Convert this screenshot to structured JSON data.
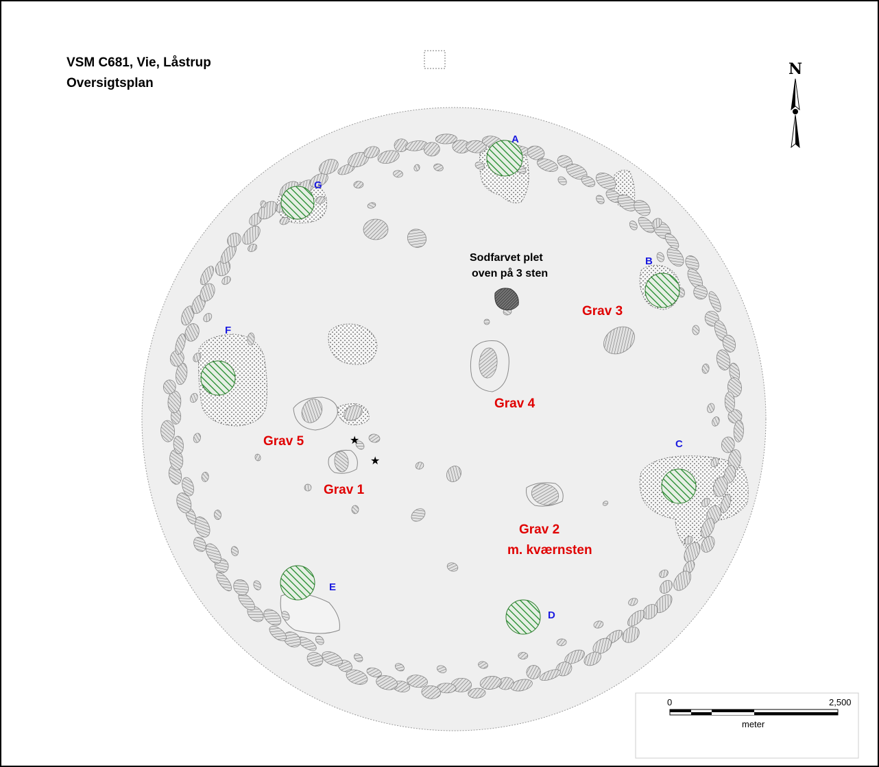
{
  "title": {
    "line1": "VSM C681, Vie, Låstrup",
    "line2": "Oversigtsplan"
  },
  "north": {
    "label": "N"
  },
  "features": [
    {
      "id": "A",
      "label": "A"
    },
    {
      "id": "B",
      "label": "B"
    },
    {
      "id": "C",
      "label": "C"
    },
    {
      "id": "D",
      "label": "D"
    },
    {
      "id": "E",
      "label": "E"
    },
    {
      "id": "F",
      "label": "F"
    },
    {
      "id": "G",
      "label": "G"
    }
  ],
  "graves": [
    {
      "id": "grav1",
      "label": "Grav 1"
    },
    {
      "id": "grav2",
      "label": "Grav 2",
      "sub": "m. kværnsten"
    },
    {
      "id": "grav3",
      "label": "Grav 3"
    },
    {
      "id": "grav4",
      "label": "Grav 4"
    },
    {
      "id": "grav5",
      "label": "Grav 5"
    }
  ],
  "soot_note": {
    "line1": "Sodfarvet plet",
    "line2": "oven på 3 sten"
  },
  "scale": {
    "start": "0",
    "end": "2,500",
    "unit": "meter"
  },
  "colors": {
    "grav": "#e00000",
    "letter": "#1a1ae0",
    "hatch_green": "#1f8a2a",
    "mound": "#efefef"
  }
}
